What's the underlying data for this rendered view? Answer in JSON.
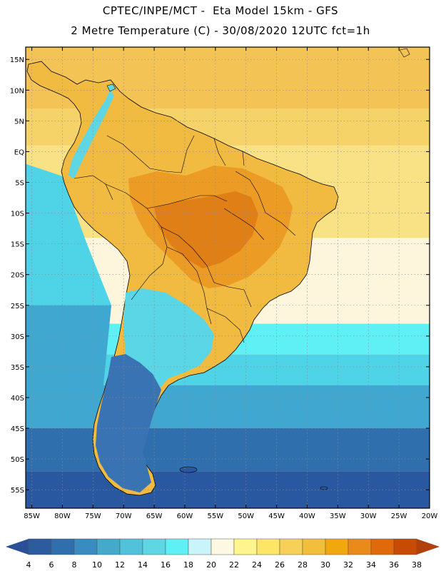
{
  "header": {
    "line1": "CPTEC/INPE/MCT -  Eta Model 15km - GFS",
    "line2": "2 Metre Temperature (C) - 30/08/2020 12UTC fct=1h"
  },
  "map": {
    "lat_labels": [
      "15N",
      "10N",
      "5N",
      "EQ",
      "5S",
      "10S",
      "15S",
      "20S",
      "25S",
      "30S",
      "35S",
      "40S",
      "45S",
      "50S",
      "55S"
    ],
    "lon_labels": [
      "85W",
      "80W",
      "75W",
      "70W",
      "65W",
      "60W",
      "55W",
      "50W",
      "45W",
      "40W",
      "35W",
      "30W",
      "25W",
      "20W"
    ],
    "extent": {
      "lon_min": -86,
      "lon_max": -20,
      "lat_min": -58,
      "lat_max": 17
    }
  },
  "colorbar": {
    "labels": [
      "4",
      "6",
      "8",
      "10",
      "12",
      "14",
      "16",
      "18",
      "20",
      "22",
      "24",
      "26",
      "28",
      "30",
      "32",
      "34",
      "36",
      "38"
    ],
    "colors": [
      "#2c5b9e",
      "#2f6fae",
      "#3a8cc0",
      "#45a9cc",
      "#52c1da",
      "#5fd6e4",
      "#5ef0f5",
      "#c8f4fa",
      "#fdf8e1",
      "#fff58f",
      "#fde568",
      "#f7d05a",
      "#f2bf3d",
      "#f1a80f",
      "#e98a1a",
      "#e06a0a",
      "#c84a05"
    ],
    "low_color": "#2a4f96",
    "high_color": "#b0400c"
  },
  "legend": {
    "ocean": {
      "north_band": "#f3c455",
      "north_mid": "#f6d368",
      "tropical": "#f9e286",
      "subtropical": "#fdf6dd",
      "mid1": "#5ef0f5",
      "mid2": "#4fd3e6",
      "mid3": "#3fa7d0",
      "south": "#2f6fae",
      "far_south": "#2a58a0"
    },
    "land": {
      "north": "#f0bb40",
      "central": "#ec9c25",
      "hot": "#e07f15",
      "andes": "#5fd6e4",
      "patagonia": "#3a73b4",
      "southcone": "#5ad6e6"
    }
  }
}
